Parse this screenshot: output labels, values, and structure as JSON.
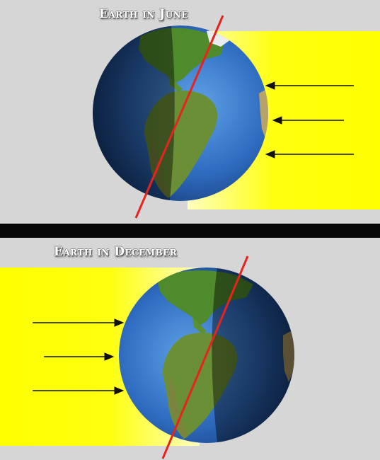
{
  "panels": [
    {
      "id": "june",
      "title": "Earth in June",
      "sunlight_side": "right"
    },
    {
      "id": "december",
      "title": "Earth in December",
      "sunlight_side": "left"
    }
  ],
  "colors": {
    "background": "#d6d6d6",
    "sunlight": "#ffff00",
    "divider": "#050505",
    "axis": "#e8221c",
    "ocean": "#2a63b8",
    "land": "#4f8a2c",
    "arrow": "#111111"
  },
  "icons": [
    "sun-ray-arrow",
    "earth-globe",
    "rotation-axis"
  ]
}
